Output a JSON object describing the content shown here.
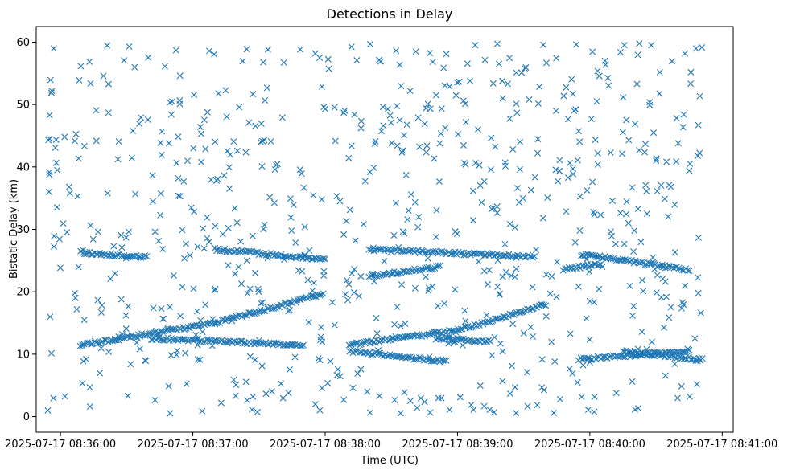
{
  "chart_data": {
    "type": "scatter",
    "title": "Detections in Delay",
    "xlabel": "Time (UTC)",
    "ylabel": "Bistatic Delay (km)",
    "marker": "x",
    "color": "#1f77b4",
    "grid": false,
    "legend": "none",
    "x_scale": "datetime",
    "x_start": "2025-07-17 08:35:54",
    "x_end": "2025-07-17 08:40:51",
    "xlim": [
      "2025-07-17 08:35:49",
      "2025-07-17 08:41:05"
    ],
    "ylim": [
      -2.5,
      62.5
    ],
    "x_ticks": [
      "2025-07-17 08:36:00",
      "2025-07-17 08:37:00",
      "2025-07-17 08:38:00",
      "2025-07-17 08:39:00",
      "2025-07-17 08:40:00",
      "2025-07-17 08:41:00"
    ],
    "y_ticks": [
      "0",
      "10",
      "20",
      "30",
      "40",
      "50",
      "60"
    ],
    "tracks": [
      {
        "description": "rising track A",
        "x": [
          "2025-07-17 08:36:10",
          "2025-07-17 08:37:10",
          "2025-07-17 08:37:59"
        ],
        "y": [
          11.5,
          15.0,
          19.6
        ]
      },
      {
        "description": "rising track B",
        "x": [
          "2025-07-17 08:38:11",
          "2025-07-17 08:39:00",
          "2025-07-17 08:39:40"
        ],
        "y": [
          11.5,
          13.8,
          18.0
        ]
      },
      {
        "description": "rising track C",
        "x": [
          "2025-07-17 08:38:20",
          "2025-07-17 08:38:52"
        ],
        "y": [
          22.5,
          24.0
        ]
      },
      {
        "description": "rising track D",
        "x": [
          "2025-07-17 08:39:48",
          "2025-07-17 08:40:05"
        ],
        "y": [
          23.5,
          24.5
        ]
      },
      {
        "description": "falling track E",
        "x": [
          "2025-07-17 08:36:10",
          "2025-07-17 08:36:39"
        ],
        "y": [
          26.2,
          25.6
        ]
      },
      {
        "description": "falling track F",
        "x": [
          "2025-07-17 08:37:10",
          "2025-07-17 08:38:00"
        ],
        "y": [
          26.8,
          25.2
        ]
      },
      {
        "description": "falling track G",
        "x": [
          "2025-07-17 08:38:20",
          "2025-07-17 08:39:35"
        ],
        "y": [
          26.8,
          25.6
        ]
      },
      {
        "description": "falling track H",
        "x": [
          "2025-07-17 08:39:56",
          "2025-07-17 08:40:45"
        ],
        "y": [
          26.0,
          23.5
        ]
      },
      {
        "description": "low falling track I",
        "x": [
          "2025-07-17 08:36:41",
          "2025-07-17 08:37:50"
        ],
        "y": [
          12.5,
          11.5
        ]
      },
      {
        "description": "low falling track J",
        "x": [
          "2025-07-17 08:38:11",
          "2025-07-17 08:38:55"
        ],
        "y": [
          10.5,
          8.8
        ]
      },
      {
        "description": "low falling track K",
        "x": [
          "2025-07-17 08:38:50",
          "2025-07-17 08:39:15"
        ],
        "y": [
          12.6,
          12.0
        ]
      },
      {
        "description": "low rising track L",
        "x": [
          "2025-07-17 08:39:55",
          "2025-07-17 08:40:45"
        ],
        "y": [
          9.2,
          10.5
        ]
      },
      {
        "description": "low falling track M",
        "x": [
          "2025-07-17 08:40:15",
          "2025-07-17 08:40:51"
        ],
        "y": [
          10.5,
          9.1
        ]
      }
    ],
    "clutter": {
      "x_range": [
        "2025-07-17 08:35:54",
        "2025-07-17 08:40:51"
      ],
      "y_range": [
        0.5,
        59.9
      ],
      "approx_count": 750
    }
  }
}
